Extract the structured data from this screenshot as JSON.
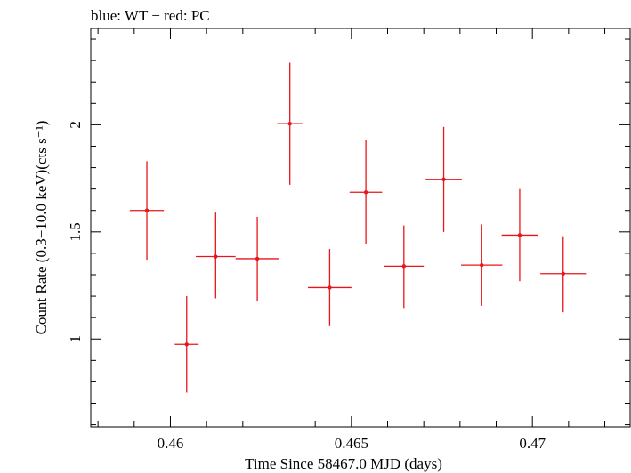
{
  "chart_data": {
    "type": "scatter",
    "title": "blue: WT − red: PC",
    "xlabel": "Time Since 58467.0 MJD (days)",
    "ylabel": "Count Rate (0.3−10.0 keV)(cts s⁻¹)",
    "xlim": [
      0.4578,
      0.4727
    ],
    "ylim": [
      0.59,
      2.45
    ],
    "xticks": [
      0.46,
      0.465,
      0.47
    ],
    "xtick_labels": [
      "0.46",
      "0.465",
      "0.47"
    ],
    "yticks": [
      1.0,
      1.5,
      2.0
    ],
    "ytick_labels": [
      "1",
      "1.5",
      "2"
    ],
    "grid": false,
    "legend": "none",
    "series": [
      {
        "color": "#e8151b",
        "points": [
          {
            "x": 0.45935,
            "y": 1.6,
            "xerr": 0.00047,
            "ylo": 1.37,
            "yhi": 1.83
          },
          {
            "x": 0.46045,
            "y": 0.975,
            "xerr": 0.00033,
            "ylo": 0.75,
            "yhi": 1.2
          },
          {
            "x": 0.46125,
            "y": 1.385,
            "xerr": 0.00055,
            "ylo": 1.19,
            "yhi": 1.59
          },
          {
            "x": 0.4624,
            "y": 1.375,
            "xerr": 0.0006,
            "ylo": 1.175,
            "yhi": 1.57
          },
          {
            "x": 0.4633,
            "y": 2.005,
            "xerr": 0.00035,
            "ylo": 1.72,
            "yhi": 2.29
          },
          {
            "x": 0.4644,
            "y": 1.24,
            "xerr": 0.0006,
            "ylo": 1.06,
            "yhi": 1.42
          },
          {
            "x": 0.4654,
            "y": 1.685,
            "xerr": 0.00045,
            "ylo": 1.445,
            "yhi": 1.93
          },
          {
            "x": 0.46645,
            "y": 1.34,
            "xerr": 0.00055,
            "ylo": 1.145,
            "yhi": 1.53
          },
          {
            "x": 0.46755,
            "y": 1.745,
            "xerr": 0.0005,
            "ylo": 1.5,
            "yhi": 1.99
          },
          {
            "x": 0.4686,
            "y": 1.345,
            "xerr": 0.00057,
            "ylo": 1.155,
            "yhi": 1.535
          },
          {
            "x": 0.46965,
            "y": 1.485,
            "xerr": 0.0005,
            "ylo": 1.27,
            "yhi": 1.7
          },
          {
            "x": 0.47085,
            "y": 1.305,
            "xerr": 0.00063,
            "ylo": 1.125,
            "yhi": 1.48
          }
        ]
      }
    ]
  }
}
